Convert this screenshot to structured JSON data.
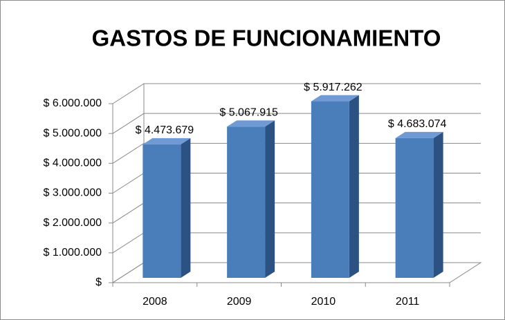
{
  "chart_data": {
    "type": "bar3d",
    "title": "GASTOS DE FUNCIONAMIENTO",
    "categories": [
      "2008",
      "2009",
      "2010",
      "2011"
    ],
    "values": [
      4473679,
      5067915,
      5917262,
      4683074
    ],
    "value_labels": [
      "$ 4.473.679",
      "$ 5.067.915",
      "$ 5.917.262",
      "$ 4.683.074"
    ],
    "color": "#4a7ebb",
    "ylim": [
      0,
      6000000
    ],
    "yticks": [
      {
        "value": 0,
        "label": "$"
      },
      {
        "value": 1000000,
        "label": "$ 1.000.000"
      },
      {
        "value": 2000000,
        "label": "$ 2.000.000"
      },
      {
        "value": 3000000,
        "label": "$ 3.000.000"
      },
      {
        "value": 4000000,
        "label": "$ 4.000.000"
      },
      {
        "value": 5000000,
        "label": "$ 5.000.000"
      },
      {
        "value": 6000000,
        "label": "$ 6.000.000"
      }
    ],
    "grid": true
  }
}
